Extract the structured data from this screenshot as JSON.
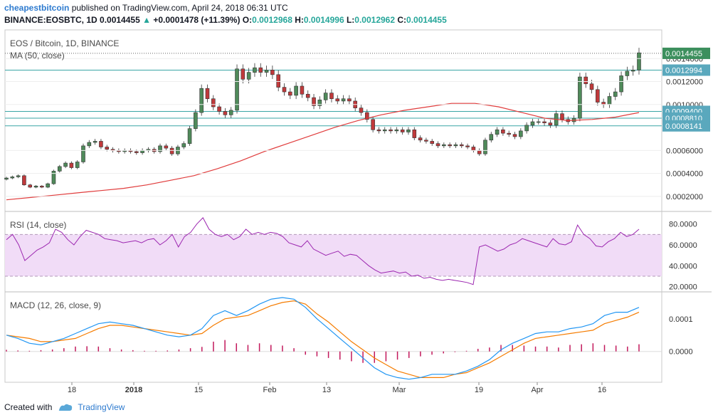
{
  "header": {
    "author": "cheapestbitcoin",
    "published": "published on TradingView.com, April 24, 2018 06:31 UTC",
    "symbol": "BINANCE:EOSBTC, 1D",
    "price": "0.0014455",
    "arrow": "▲",
    "change": "+0.0001478 (+11.39%)",
    "o_label": "O:",
    "o_value": "0.0012968",
    "h_label": "H:",
    "h_value": "0.0014996",
    "l_label": "L:",
    "l_value": "0.0012962",
    "c_label": "C:",
    "c_value": "0.0014455"
  },
  "footer": {
    "created": "Created with",
    "brand": "TradingView"
  },
  "colors": {
    "up": "#4f8a5a",
    "down": "#c0393b",
    "ma": "#e03c3c",
    "rsi": "#9c27b0",
    "rsi_band": "#f1dcf7",
    "macd": "#2196f3",
    "signal": "#f57c00",
    "hist": "#c2185b",
    "hline": "#3aa6a6",
    "tag_bg": "#5aa8bd"
  },
  "chart_data": [
    {
      "type": "candlestick",
      "title": "EOS / Bitcoin, 1D, BINANCE",
      "subtitle": "MA (50, close)",
      "ylim": [
        0.0001,
        0.0016
      ],
      "y_ticks": [
        "0.0014000",
        "0.0012000",
        "0.0010000",
        "0.0006000",
        "0.0004000",
        "0.0002000"
      ],
      "x_ticks": [
        "18",
        "2018",
        "15",
        "Feb",
        "13",
        "Mar",
        "19",
        "Apr",
        "16"
      ],
      "date_range": [
        "2018-01-08",
        "2018-04-24"
      ],
      "horizontal_levels": [
        {
          "label": "0.0014455",
          "value": 0.0014455,
          "style": "dotted-dark"
        },
        {
          "label": "0.0012994",
          "value": 0.0012994,
          "style": "teal"
        },
        {
          "label": "0.0009400",
          "value": 0.00094,
          "style": "teal"
        },
        {
          "label": "0.0008810",
          "value": 0.000881,
          "style": "teal"
        },
        {
          "label": "0.0008141",
          "value": 0.0008141,
          "style": "teal"
        }
      ],
      "closes": [
        0.00036,
        0.00037,
        0.00038,
        0.0003,
        0.00028,
        0.00029,
        0.00028,
        0.00031,
        0.00042,
        0.00046,
        0.00049,
        0.00045,
        0.0005,
        0.00064,
        0.00067,
        0.00068,
        0.00063,
        0.00061,
        0.0006,
        0.00059,
        0.0006,
        0.00059,
        0.00058,
        0.0006,
        0.00061,
        0.00059,
        0.00064,
        0.00062,
        0.00057,
        0.00063,
        0.00066,
        0.00079,
        0.00093,
        0.00114,
        0.00105,
        0.00098,
        0.00094,
        0.00091,
        0.00095,
        0.00131,
        0.00122,
        0.00128,
        0.00132,
        0.00128,
        0.0013,
        0.00126,
        0.00115,
        0.00111,
        0.00108,
        0.00116,
        0.00109,
        0.00106,
        0.00099,
        0.00104,
        0.0011,
        0.00105,
        0.00103,
        0.00105,
        0.00103,
        0.00097,
        0.00093,
        0.00087,
        0.00078,
        0.00077,
        0.00078,
        0.00077,
        0.00078,
        0.00076,
        0.00078,
        0.00071,
        0.00069,
        0.00068,
        0.00066,
        0.00064,
        0.00065,
        0.00064,
        0.00065,
        0.00064,
        0.00063,
        0.0006,
        0.00057,
        0.00069,
        0.00074,
        0.00078,
        0.00075,
        0.00074,
        0.00072,
        0.00077,
        0.00082,
        0.00085,
        0.00085,
        0.00084,
        0.00082,
        0.00092,
        0.00087,
        0.00085,
        0.00088,
        0.00124,
        0.00118,
        0.00113,
        0.00102,
        0.001,
        0.00107,
        0.00111,
        0.00125,
        0.00129,
        0.0013,
        0.00145
      ],
      "ma": [
        0.00017,
        0.00019,
        0.00021,
        0.00023,
        0.00025,
        0.00027,
        0.0003,
        0.00034,
        0.00038,
        0.00044,
        0.00051,
        0.00059,
        0.00066,
        0.00073,
        0.0008,
        0.00086,
        0.00091,
        0.00095,
        0.00098,
        0.00101,
        0.00101,
        0.00098,
        0.00093,
        0.00088,
        0.00086,
        0.00087,
        0.00089,
        0.00093
      ],
      "ma_start_index": 0
    },
    {
      "type": "line",
      "title": "RSI (14, close)",
      "ylim": [
        15,
        90
      ],
      "y_ticks": [
        "80.0000",
        "60.0000",
        "40.0000",
        "20.0000"
      ],
      "band": [
        30,
        70
      ],
      "series": [
        {
          "name": "RSI",
          "values": [
            65,
            70,
            60,
            45,
            50,
            55,
            58,
            62,
            75,
            72,
            65,
            60,
            68,
            74,
            72,
            70,
            66,
            65,
            64,
            62,
            63,
            64,
            62,
            65,
            66,
            60,
            64,
            70,
            58,
            68,
            72,
            80,
            86,
            75,
            70,
            68,
            70,
            65,
            68,
            75,
            70,
            72,
            70,
            72,
            71,
            68,
            62,
            60,
            58,
            64,
            56,
            53,
            50,
            52,
            54,
            49,
            51,
            50,
            45,
            40,
            36,
            33,
            34,
            35,
            33,
            34,
            30,
            31,
            28,
            29,
            27,
            26,
            27,
            26,
            25,
            24,
            22,
            58,
            60,
            57,
            54,
            56,
            60,
            62,
            66,
            64,
            62,
            60,
            58,
            66,
            61,
            60,
            63,
            79,
            70,
            66,
            59,
            58,
            63,
            66,
            72,
            68,
            70,
            75
          ]
        }
      ]
    },
    {
      "type": "line",
      "title": "MACD (12, 26, close, 9)",
      "ylim": [
        -9e-05,
        0.000165
      ],
      "y_ticks": [
        "0.0001",
        "0.0000"
      ],
      "series": [
        {
          "name": "MACD",
          "values": [
            5e-05,
            4e-05,
            2.5e-05,
            2e-05,
            3e-05,
            4e-05,
            5.5e-05,
            7e-05,
            8.5e-05,
            9e-05,
            8.5e-05,
            8e-05,
            7e-05,
            6e-05,
            5e-05,
            4.5e-05,
            5e-05,
            7e-05,
            0.00011,
            0.000125,
            0.00011,
            0.000125,
            0.000145,
            0.00016,
            0.000165,
            0.00016,
            0.000135,
            0.0001,
            7e-05,
            4e-05,
            1e-05,
            -2e-05,
            -5e-05,
            -7e-05,
            -8e-05,
            -8.5e-05,
            -8e-05,
            -7e-05,
            -7e-05,
            -7e-05,
            -6e-05,
            -4.5e-05,
            -2.5e-05,
            5e-06,
            2.5e-05,
            4e-05,
            5.5e-05,
            6e-05,
            6e-05,
            7e-05,
            7.5e-05,
            8.5e-05,
            0.00011,
            0.00012,
            0.00012,
            0.000135
          ]
        },
        {
          "name": "Signal",
          "values": [
            5e-05,
            4.5e-05,
            4e-05,
            3e-05,
            3e-05,
            3.5e-05,
            4e-05,
            5.5e-05,
            7e-05,
            8e-05,
            8e-05,
            7.5e-05,
            7e-05,
            6.5e-05,
            6e-05,
            5.5e-05,
            5e-05,
            5.5e-05,
            8e-05,
            0.0001,
            0.000105,
            0.00011,
            0.000125,
            0.00014,
            0.00015,
            0.000155,
            0.000145,
            0.000115,
            9e-05,
            6e-05,
            3e-05,
            5e-06,
            -2e-05,
            -4e-05,
            -6e-05,
            -7e-05,
            -8e-05,
            -8e-05,
            -8e-05,
            -7e-05,
            -6.5e-05,
            -5e-05,
            -3.5e-05,
            -1.5e-05,
            5e-06,
            2.5e-05,
            4e-05,
            4.5e-05,
            5e-05,
            5.5e-05,
            6e-05,
            6.5e-05,
            8.5e-05,
            9.5e-05,
            0.000105,
            0.00012
          ]
        },
        {
          "name": "Histogram",
          "values": [
            5e-06,
            3e-06,
            2e-06,
            4e-06,
            6e-06,
            1e-05,
            1.5e-05,
            1.6e-05,
            1.5e-05,
            1e-05,
            6e-06,
            4e-06,
            2e-06,
            2e-06,
            3e-06,
            6e-06,
            1e-05,
            1.4e-05,
            3e-05,
            3.5e-05,
            2.5e-05,
            2e-05,
            2.5e-05,
            2e-05,
            1.8e-05,
            1e-05,
            -1e-05,
            -1.5e-05,
            -2e-05,
            -2.5e-05,
            -3e-05,
            -3.5e-05,
            -3.5e-05,
            -3e-05,
            -2.5e-05,
            -2e-05,
            -1.5e-05,
            -1e-05,
            -6e-06,
            -2e-06,
            2e-06,
            8e-06,
            1.2e-05,
            2e-05,
            2e-05,
            1.8e-05,
            1.5e-05,
            1.5e-05,
            1.2e-05,
            2e-05,
            2.2e-05,
            2.5e-05,
            2e-05,
            1.8e-05,
            1.5e-05,
            2.2e-05
          ]
        }
      ]
    }
  ]
}
